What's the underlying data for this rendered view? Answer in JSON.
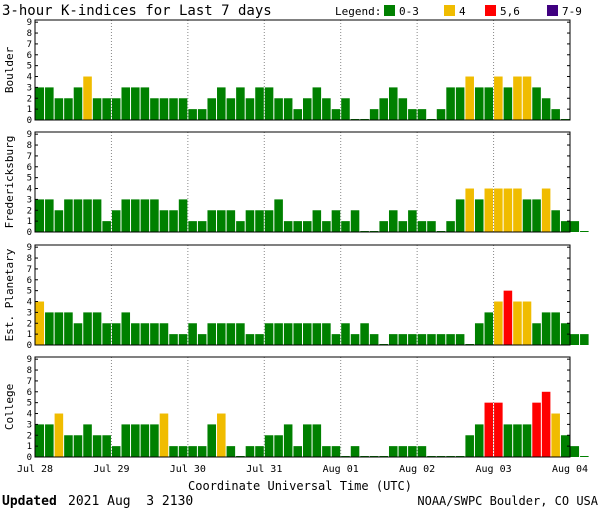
{
  "header": {
    "title": "3-hour K-indices for Last 7 days",
    "legend_label": "Legend:",
    "legend": [
      {
        "label": "0-3",
        "color": "#008000"
      },
      {
        "label": "4",
        "color": "#f0bc00"
      },
      {
        "label": "5,6",
        "color": "#ff0000"
      },
      {
        "label": "7-9",
        "color": "#400080"
      }
    ]
  },
  "chart_data": [
    {
      "type": "bar",
      "title": "Boulder",
      "ylim": [
        0,
        9
      ],
      "yticks": [
        "0",
        "1",
        "2",
        "3",
        "4",
        "5",
        "6",
        "7",
        "8",
        "9"
      ],
      "values": [
        3,
        3,
        2,
        2,
        3,
        4,
        2,
        2,
        2,
        3,
        3,
        3,
        2,
        2,
        2,
        2,
        1,
        1,
        2,
        3,
        2,
        3,
        2,
        3,
        3,
        2,
        2,
        1,
        2,
        3,
        2,
        1,
        2,
        0,
        0,
        1,
        2,
        3,
        2,
        1,
        1,
        0,
        1,
        3,
        3,
        4,
        3,
        3,
        4,
        3,
        4,
        4,
        3,
        2,
        1,
        0
      ]
    },
    {
      "type": "bar",
      "title": "Fredericksburg",
      "ylim": [
        0,
        9
      ],
      "yticks": [
        "0",
        "1",
        "2",
        "3",
        "4",
        "5",
        "6",
        "7",
        "8",
        "9"
      ],
      "values": [
        3,
        3,
        2,
        3,
        3,
        3,
        3,
        1,
        2,
        3,
        3,
        3,
        3,
        2,
        2,
        3,
        1,
        1,
        2,
        2,
        2,
        1,
        2,
        2,
        2,
        3,
        1,
        1,
        1,
        2,
        1,
        2,
        1,
        2,
        0,
        0,
        1,
        2,
        1,
        2,
        1,
        1,
        0,
        1,
        3,
        4,
        3,
        4,
        4,
        4,
        4,
        3,
        3,
        4,
        2,
        1,
        1,
        0
      ]
    },
    {
      "type": "bar",
      "title": "Est. Planetary",
      "ylim": [
        0,
        9
      ],
      "yticks": [
        "0",
        "1",
        "2",
        "3",
        "4",
        "5",
        "6",
        "7",
        "8",
        "9"
      ],
      "values": [
        4,
        3,
        3,
        3,
        2,
        3,
        3,
        2,
        2,
        3,
        2,
        2,
        2,
        2,
        1,
        1,
        2,
        1,
        2,
        2,
        2,
        2,
        1,
        1,
        2,
        2,
        2,
        2,
        2,
        2,
        2,
        1,
        2,
        1,
        2,
        1,
        0,
        1,
        1,
        1,
        1,
        1,
        1,
        1,
        1,
        0,
        2,
        3,
        4,
        5,
        4,
        4,
        2,
        3,
        3,
        2,
        1,
        1
      ]
    },
    {
      "type": "bar",
      "title": "College",
      "ylim": [
        0,
        9
      ],
      "yticks": [
        "0",
        "1",
        "2",
        "3",
        "4",
        "5",
        "6",
        "7",
        "8",
        "9"
      ],
      "values": [
        3,
        3,
        4,
        2,
        2,
        3,
        2,
        2,
        1,
        3,
        3,
        3,
        3,
        4,
        1,
        1,
        1,
        1,
        3,
        4,
        1,
        0,
        1,
        1,
        2,
        2,
        3,
        1,
        3,
        3,
        1,
        1,
        0,
        1,
        0,
        0,
        0,
        1,
        1,
        1,
        1,
        0,
        0,
        0,
        0,
        2,
        3,
        5,
        5,
        3,
        3,
        3,
        5,
        6,
        4,
        2,
        1,
        0
      ]
    }
  ],
  "x_axis": {
    "labels": [
      "Jul 28",
      "Jul 29",
      "Jul 30",
      "Jul 31",
      "Aug 01",
      "Aug 02",
      "Aug 03",
      "Aug 04"
    ],
    "title": "Coordinate Universal Time (UTC)"
  },
  "footer": {
    "updated_label": "Updated",
    "updated_time": "2021 Aug  3 2130",
    "credit": "NOAA/SWPC Boulder, CO USA"
  }
}
